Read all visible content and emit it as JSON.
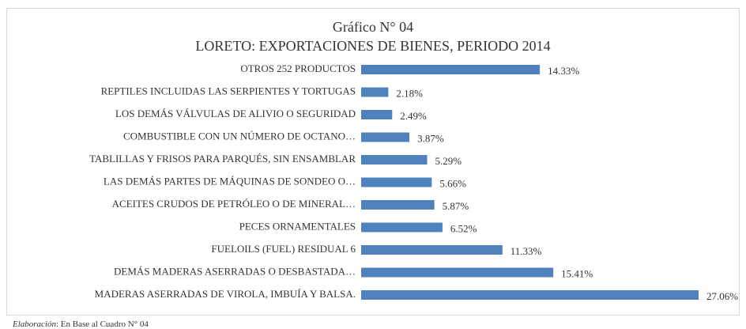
{
  "chart_data": {
    "type": "bar",
    "orientation": "horizontal",
    "title": "Gráfico N° 04",
    "subtitle": "LORETO: EXPORTACIONES DE BIENES, PERIODO 2014",
    "categories": [
      "OTROS 252 PRODUCTOS",
      "REPTILES INCLUIDAS LAS SERPIENTES Y TORTUGAS",
      "LOS DEMÁS VÁLVULAS DE ALIVIO O SEGURIDAD",
      "COMBUSTIBLE CON UN NÚMERO DE OCTANO…",
      "TABLILLAS Y FRISOS PARA PARQUÉS, SIN ENSAMBLAR",
      "LAS DEMÁS PARTES DE MÁQUINAS DE SONDEO O…",
      "ACEITES CRUDOS DE PETRÓLEO O DE MINERAL…",
      "PECES ORNAMENTALES",
      "FUELOILS (FUEL) RESIDUAL 6",
      "DEMÁS MADERAS ASERRADAS O DESBASTADA…",
      "MADERAS ASERRADAS DE VIROLA, IMBUÍA Y BALSA."
    ],
    "values": [
      14.33,
      2.18,
      2.49,
      3.87,
      5.29,
      5.66,
      5.87,
      6.52,
      11.33,
      15.41,
      27.06
    ],
    "value_labels": [
      "14.33%",
      "2.18%",
      "2.49%",
      "3.87%",
      "5.29%",
      "5.66%",
      "5.87%",
      "6.52%",
      "11.33%",
      "15.41%",
      "27.06%"
    ],
    "color": "#4f81bd",
    "source_label": "Elaboración",
    "source_text": ": En Base al Cuadro N° 04"
  }
}
